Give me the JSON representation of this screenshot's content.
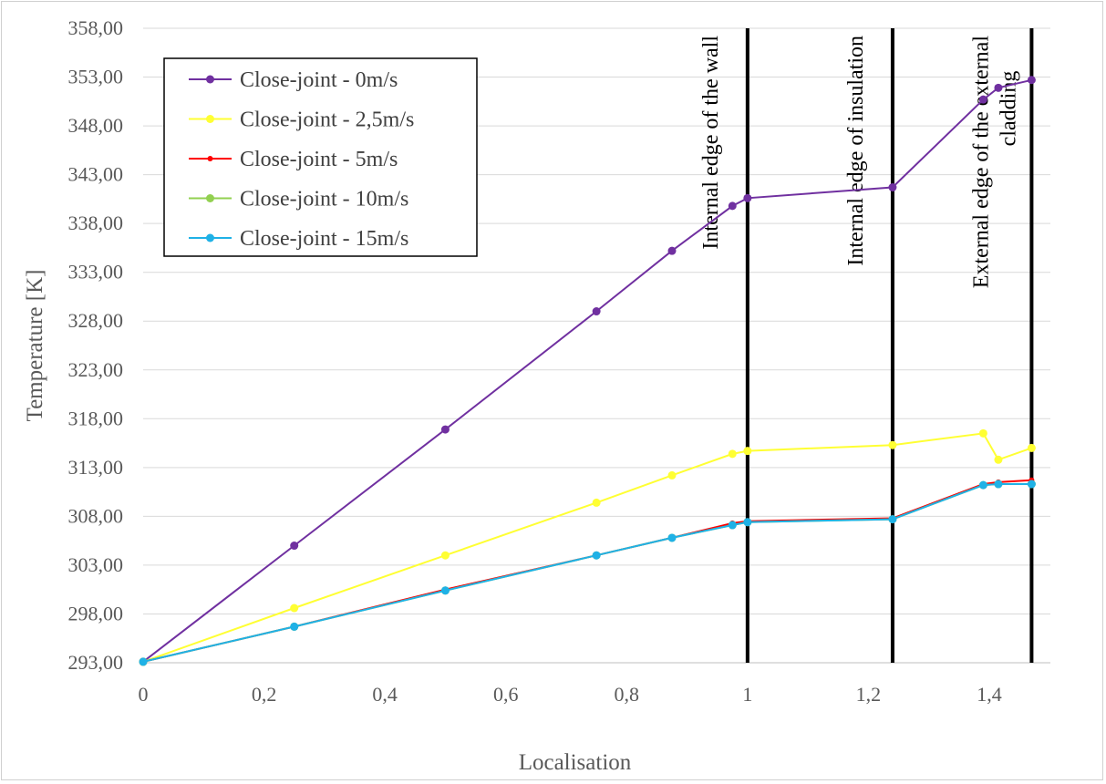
{
  "chart_data": {
    "type": "line",
    "title": "",
    "xlabel": "Localisation",
    "ylabel": "Temperature [K]",
    "xlim": [
      0,
      1.5
    ],
    "ylim": [
      293,
      358
    ],
    "x_ticks": [
      0,
      0.2,
      0.4,
      0.6,
      0.8,
      1,
      1.2,
      1.4
    ],
    "x_tick_labels": [
      "0",
      "0,2",
      "0,4",
      "0,6",
      "0,8",
      "1",
      "1,2",
      "1,4"
    ],
    "y_ticks": [
      293,
      298,
      303,
      308,
      313,
      318,
      323,
      328,
      333,
      338,
      343,
      348,
      353,
      358
    ],
    "y_tick_labels": [
      "293,00",
      "298,00",
      "303,00",
      "308,00",
      "313,00",
      "318,00",
      "323,00",
      "328,00",
      "333,00",
      "338,00",
      "343,00",
      "348,00",
      "353,00",
      "358,00"
    ],
    "grid": "horizontal",
    "legend_position": "top-left",
    "series": [
      {
        "name": "Close-joint - 0m/s",
        "color": "#7030a0",
        "points": [
          [
            0,
            293.1
          ],
          [
            0.25,
            305.0
          ],
          [
            0.5,
            316.9
          ],
          [
            0.75,
            329.0
          ],
          [
            0.875,
            335.2
          ],
          [
            0.975,
            339.8
          ],
          [
            1.0,
            340.6
          ],
          [
            1.24,
            341.7
          ],
          [
            1.39,
            350.7
          ],
          [
            1.415,
            351.9
          ],
          [
            1.47,
            352.7
          ]
        ]
      },
      {
        "name": "Close-joint - 2,5m/s",
        "color": "#ffff33",
        "points": [
          [
            0,
            293.1
          ],
          [
            0.25,
            298.6
          ],
          [
            0.5,
            304.0
          ],
          [
            0.75,
            309.4
          ],
          [
            0.875,
            312.2
          ],
          [
            0.975,
            314.4
          ],
          [
            1.0,
            314.7
          ],
          [
            1.24,
            315.3
          ],
          [
            1.39,
            316.5
          ],
          [
            1.415,
            313.8
          ],
          [
            1.47,
            315.0
          ]
        ]
      },
      {
        "name": "Close-joint - 5m/s",
        "color": "#ff0000",
        "points": [
          [
            0,
            293.1
          ],
          [
            0.25,
            296.7
          ],
          [
            0.5,
            300.5
          ],
          [
            0.75,
            304.0
          ],
          [
            0.875,
            305.8
          ],
          [
            0.975,
            307.3
          ],
          [
            1.0,
            307.5
          ],
          [
            1.24,
            307.8
          ],
          [
            1.39,
            311.3
          ],
          [
            1.415,
            311.5
          ],
          [
            1.47,
            311.7
          ]
        ]
      },
      {
        "name": "Close-joint - 10m/s",
        "color": "#92d050",
        "points": [
          [
            0,
            293.1
          ],
          [
            0.25,
            296.7
          ],
          [
            0.5,
            300.4
          ],
          [
            0.75,
            304.0
          ],
          [
            0.875,
            305.8
          ],
          [
            0.975,
            307.1
          ],
          [
            1.0,
            307.4
          ],
          [
            1.24,
            307.7
          ],
          [
            1.39,
            311.2
          ],
          [
            1.415,
            311.3
          ],
          [
            1.47,
            311.3
          ]
        ]
      },
      {
        "name": "Close-joint - 15m/s",
        "color": "#1fb1e6",
        "points": [
          [
            0,
            293.1
          ],
          [
            0.25,
            296.7
          ],
          [
            0.5,
            300.4
          ],
          [
            0.75,
            304.0
          ],
          [
            0.875,
            305.8
          ],
          [
            0.975,
            307.1
          ],
          [
            1.0,
            307.4
          ],
          [
            1.24,
            307.7
          ],
          [
            1.39,
            311.2
          ],
          [
            1.415,
            311.3
          ],
          [
            1.47,
            311.3
          ]
        ]
      }
    ],
    "vertical_markers": [
      {
        "x": 1.0,
        "label": "Internal edge of the wall"
      },
      {
        "x": 1.24,
        "label": "Internal edge of insulation"
      },
      {
        "x": 1.47,
        "label": "External edge of the external",
        "label2": "cladding"
      }
    ]
  }
}
